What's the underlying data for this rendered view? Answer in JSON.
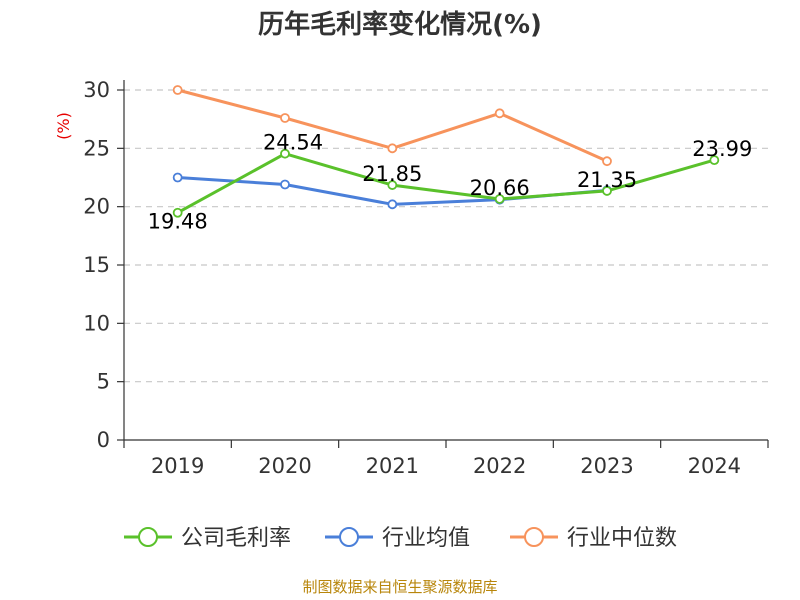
{
  "chart_data": {
    "type": "line",
    "title": "历年毛利率变化情况(%)",
    "ylabel": "(%)",
    "categories": [
      "2019",
      "2020",
      "2021",
      "2022",
      "2023",
      "2024"
    ],
    "ylim": [
      0,
      30
    ],
    "yticks": [
      0,
      5,
      10,
      15,
      20,
      25,
      30
    ],
    "grid": true,
    "legend_position": "bottom",
    "series": [
      {
        "name": "公司毛利率",
        "color": "#5ac12b",
        "values": [
          19.48,
          24.54,
          21.85,
          20.66,
          21.35,
          23.99
        ],
        "labels": [
          "19.48",
          "24.54",
          "21.85",
          "20.66",
          "21.35",
          "23.99"
        ]
      },
      {
        "name": "行业均值",
        "color": "#4a7fd9",
        "values": [
          22.5,
          21.9,
          20.2,
          20.6,
          21.4,
          null
        ]
      },
      {
        "name": "行业中位数",
        "color": "#f7935c",
        "values": [
          30.0,
          27.6,
          25.0,
          28.0,
          23.9,
          null
        ]
      }
    ]
  },
  "source_text": "制图数据来自恒生聚源数据库"
}
